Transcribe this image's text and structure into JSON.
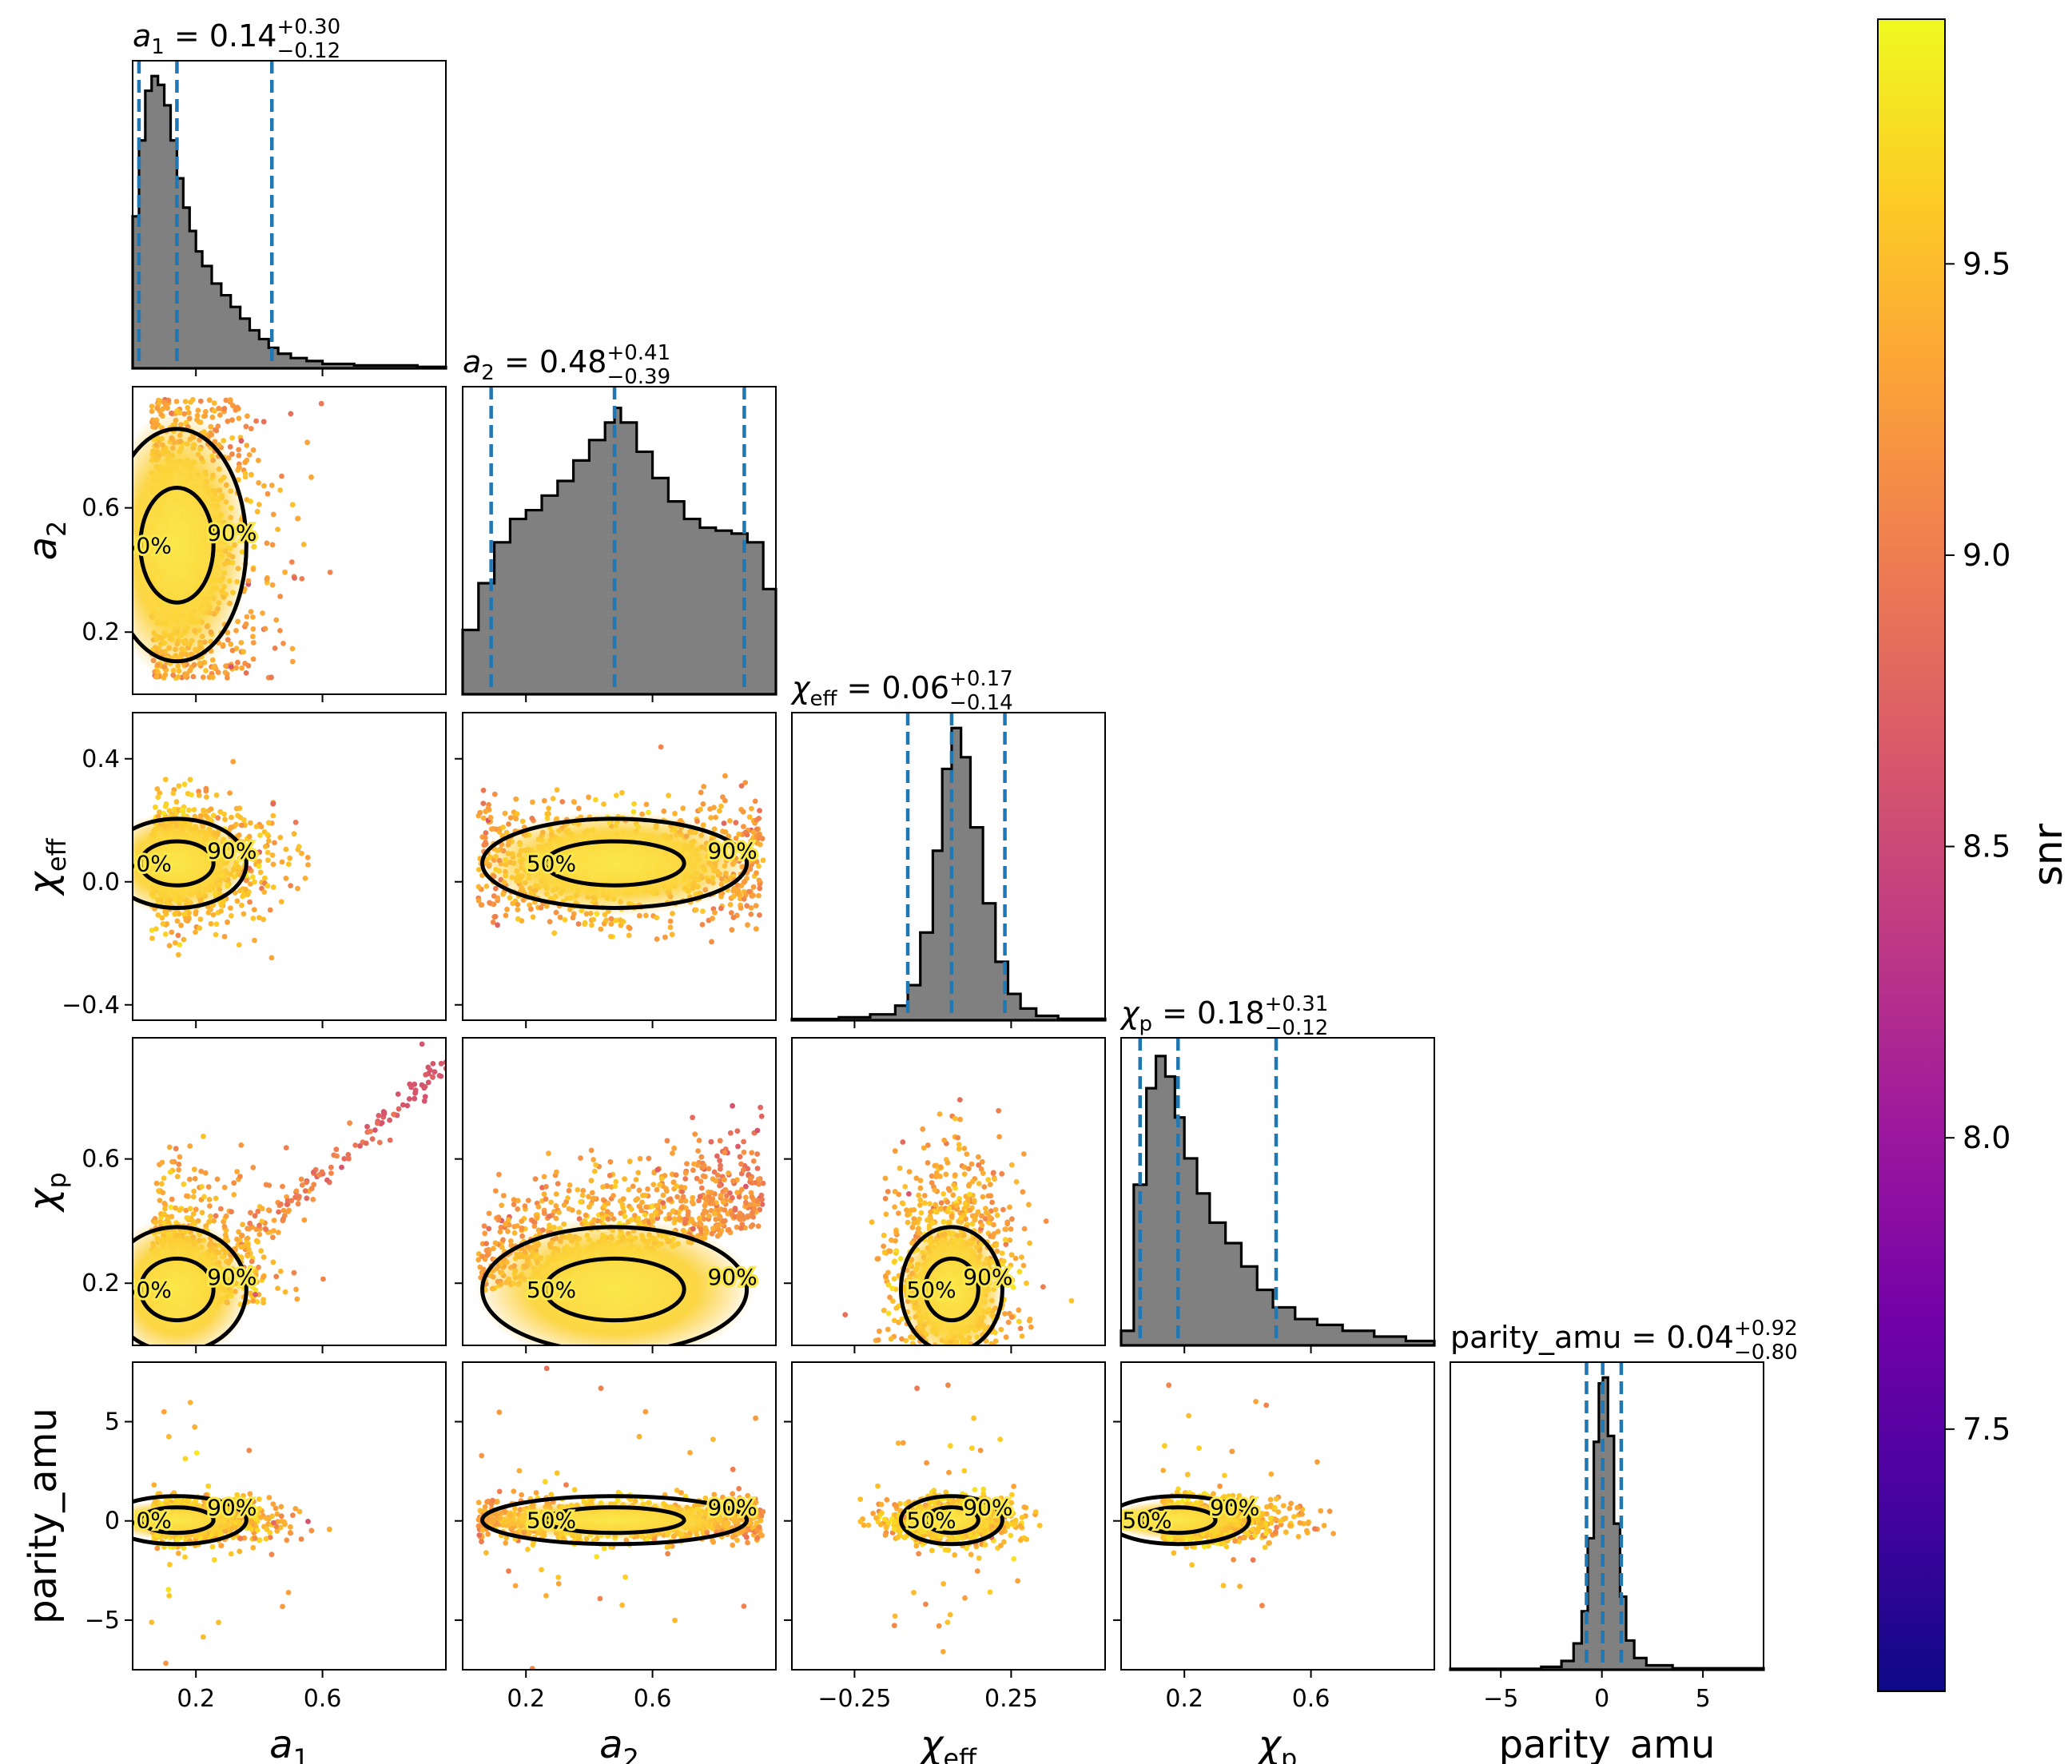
{
  "chart_data": {
    "type": "scatter",
    "parameters": [
      {
        "key": "a1",
        "axis_label": "a",
        "axis_sub": "1",
        "median": "0.14",
        "plus": "+0.30",
        "minus": "−0.12",
        "title_prefix": "a",
        "title_sub": "1",
        "range": [
          0.0,
          0.99
        ],
        "ticks": [
          0.2,
          0.6
        ],
        "tick_labels": [
          "0.2",
          "0.6"
        ],
        "quantiles": [
          0.02,
          0.14,
          0.44
        ]
      },
      {
        "key": "a2",
        "axis_label": "a",
        "axis_sub": "2",
        "median": "0.48",
        "plus": "+0.41",
        "minus": "−0.39",
        "title_prefix": "a",
        "title_sub": "2",
        "range": [
          0.0,
          0.99
        ],
        "ticks": [
          0.2,
          0.6
        ],
        "tick_labels": [
          "0.2",
          "0.6"
        ],
        "quantiles": [
          0.09,
          0.48,
          0.89
        ]
      },
      {
        "key": "chi_eff",
        "axis_label": "χ",
        "axis_sub": "eff",
        "median": "0.06",
        "plus": "+0.17",
        "minus": "−0.14",
        "title_prefix": "χ",
        "title_sub": "eff",
        "range": [
          -0.45,
          0.55
        ],
        "ticks": [
          -0.25,
          0.25
        ],
        "tick_labels": [
          "−0.25",
          "0.25"
        ],
        "quantiles": [
          -0.08,
          0.06,
          0.23
        ]
      },
      {
        "key": "chi_p",
        "axis_label": "χ",
        "axis_sub": "p",
        "median": "0.18",
        "plus": "+0.31",
        "minus": "−0.12",
        "title_prefix": "χ",
        "title_sub": "p",
        "range": [
          0.0,
          0.99
        ],
        "ticks": [
          0.2,
          0.6
        ],
        "tick_labels": [
          "0.2",
          "0.6"
        ],
        "quantiles": [
          0.06,
          0.18,
          0.49
        ]
      },
      {
        "key": "parity_amu",
        "axis_label": "parity_amu",
        "axis_sub": "",
        "median": "0.04",
        "plus": "+0.92",
        "minus": "−0.80",
        "title_prefix": "parity_amu",
        "title_sub": "",
        "range": [
          -7.5,
          8.0
        ],
        "ticks": [
          -5,
          0,
          5
        ],
        "tick_labels": [
          "−5",
          "0",
          "5"
        ],
        "quantiles": [
          -0.76,
          0.04,
          0.96
        ]
      }
    ],
    "row_ticks": {
      "a2": {
        "ticks": [
          0.2,
          0.6
        ],
        "labels": [
          "0.2",
          "0.6"
        ]
      },
      "chi_eff": {
        "ticks": [
          -0.4,
          0.0,
          0.4
        ],
        "labels": [
          "−0.4",
          "0.0",
          "0.4"
        ]
      },
      "chi_p": {
        "ticks": [
          0.2,
          0.6
        ],
        "labels": [
          "0.2",
          "0.6"
        ]
      },
      "parity_amu": {
        "ticks": [
          -5,
          0,
          5
        ],
        "labels": [
          "−5",
          "0",
          "5"
        ]
      }
    },
    "histograms": {
      "a1": {
        "x": [
          0.0,
          0.02,
          0.04,
          0.06,
          0.08,
          0.1,
          0.12,
          0.14,
          0.16,
          0.18,
          0.2,
          0.22,
          0.25,
          0.28,
          0.31,
          0.34,
          0.37,
          0.4,
          0.43,
          0.46,
          0.5,
          0.55,
          0.6,
          0.7,
          0.8,
          0.9,
          0.99
        ],
        "y": [
          0.52,
          0.78,
          0.95,
          1.0,
          0.97,
          0.9,
          0.78,
          0.65,
          0.55,
          0.47,
          0.4,
          0.35,
          0.29,
          0.25,
          0.21,
          0.17,
          0.13,
          0.1,
          0.07,
          0.05,
          0.035,
          0.025,
          0.015,
          0.01,
          0.01,
          0.005,
          0.004
        ]
      },
      "a2": {
        "x": [
          0.0,
          0.05,
          0.1,
          0.15,
          0.2,
          0.25,
          0.3,
          0.35,
          0.4,
          0.45,
          0.48,
          0.5,
          0.55,
          0.6,
          0.65,
          0.7,
          0.75,
          0.8,
          0.85,
          0.9,
          0.95,
          0.99
        ],
        "y": [
          0.22,
          0.38,
          0.52,
          0.6,
          0.63,
          0.68,
          0.73,
          0.8,
          0.87,
          0.93,
          0.98,
          0.93,
          0.83,
          0.74,
          0.66,
          0.6,
          0.57,
          0.56,
          0.55,
          0.52,
          0.36,
          0.18
        ]
      },
      "chi_eff": {
        "x": [
          -0.45,
          -0.3,
          -0.2,
          -0.12,
          -0.08,
          -0.04,
          0.0,
          0.03,
          0.06,
          0.09,
          0.12,
          0.16,
          0.2,
          0.24,
          0.28,
          0.33,
          0.4,
          0.55
        ],
        "y": [
          0.004,
          0.01,
          0.02,
          0.05,
          0.12,
          0.3,
          0.58,
          0.86,
          1.0,
          0.9,
          0.66,
          0.4,
          0.2,
          0.09,
          0.04,
          0.015,
          0.005,
          0.003
        ]
      },
      "chi_p": {
        "x": [
          0.0,
          0.04,
          0.08,
          0.11,
          0.14,
          0.17,
          0.2,
          0.24,
          0.28,
          0.33,
          0.38,
          0.43,
          0.48,
          0.55,
          0.62,
          0.7,
          0.8,
          0.9,
          0.99
        ],
        "y": [
          0.05,
          0.55,
          0.88,
          0.99,
          0.92,
          0.78,
          0.64,
          0.52,
          0.42,
          0.35,
          0.27,
          0.19,
          0.13,
          0.09,
          0.07,
          0.05,
          0.03,
          0.015,
          0.006
        ]
      },
      "parity_amu": {
        "x": [
          -7.5,
          -3.0,
          -2.0,
          -1.4,
          -1.0,
          -0.7,
          -0.4,
          -0.15,
          0.05,
          0.3,
          0.6,
          0.9,
          1.2,
          1.6,
          2.2,
          3.5,
          8.0
        ],
        "y": [
          0.003,
          0.01,
          0.03,
          0.09,
          0.2,
          0.45,
          0.78,
          0.98,
          1.0,
          0.8,
          0.5,
          0.25,
          0.1,
          0.04,
          0.015,
          0.005,
          0.003
        ]
      }
    },
    "contour_labels": [
      "50%",
      "90%"
    ],
    "colorbar": {
      "label": "snr",
      "min": 7.05,
      "max": 9.92,
      "ticks": [
        7.5,
        8.0,
        8.5,
        9.0,
        9.5
      ],
      "tick_labels": [
        "7.5",
        "8.0",
        "8.5",
        "9.0",
        "9.5"
      ],
      "colors": [
        "#0d0887",
        "#46039f",
        "#7201a8",
        "#9c179e",
        "#bd3786",
        "#d8576b",
        "#ed7953",
        "#fb9f3a",
        "#fdca26",
        "#f0f921"
      ]
    }
  }
}
